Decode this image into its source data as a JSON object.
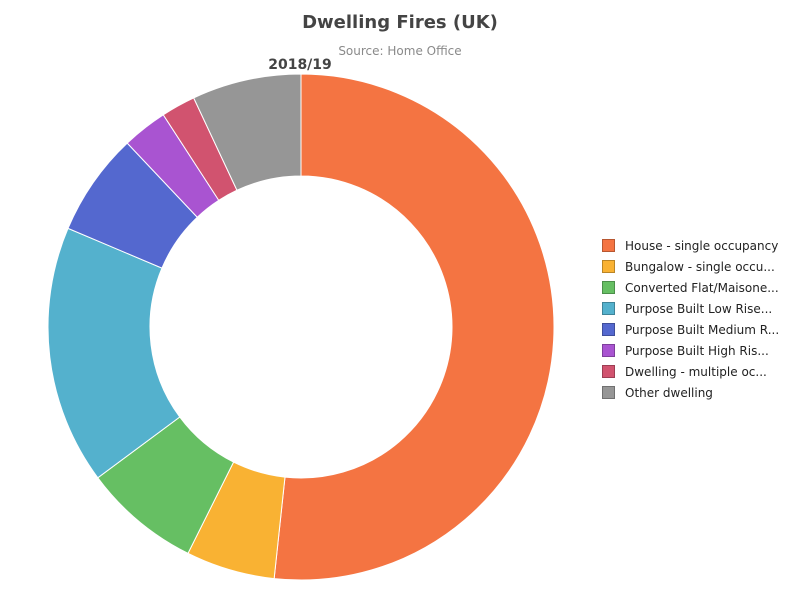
{
  "chart_data": {
    "type": "pie",
    "title": "Dwelling Fires (UK)",
    "subtitle": "Source: Home Office",
    "period_label": "2018/19",
    "donut": true,
    "legend_position": "right",
    "series": [
      {
        "name": "House - single occupancy",
        "legend_label": "House - single occupancy",
        "value": 51.9,
        "color": "#f47442"
      },
      {
        "name": "Bungalow - single occupancy",
        "legend_label": "Bungalow - single occu...",
        "value": 5.7,
        "color": "#f9b233"
      },
      {
        "name": "Converted Flat/Maisonette",
        "legend_label": "Converted Flat/Maisone...",
        "value": 7.5,
        "color": "#66bf63"
      },
      {
        "name": "Purpose Built Low Rise",
        "legend_label": "Purpose Built Low Rise...",
        "value": 16.6,
        "color": "#54b1cd"
      },
      {
        "name": "Purpose Built Medium Rise",
        "legend_label": "Purpose Built Medium R...",
        "value": 6.6,
        "color": "#5468cf"
      },
      {
        "name": "Purpose Built High Rise",
        "legend_label": "Purpose Built High Ris...",
        "value": 2.9,
        "color": "#a954d1"
      },
      {
        "name": "Dwelling - multiple occupancy",
        "legend_label": "Dwelling - multiple oc...",
        "value": 2.2,
        "color": "#d1536f"
      },
      {
        "name": "Other dwelling",
        "legend_label": "Other dwelling",
        "value": 7.0,
        "color": "#969696"
      }
    ]
  }
}
